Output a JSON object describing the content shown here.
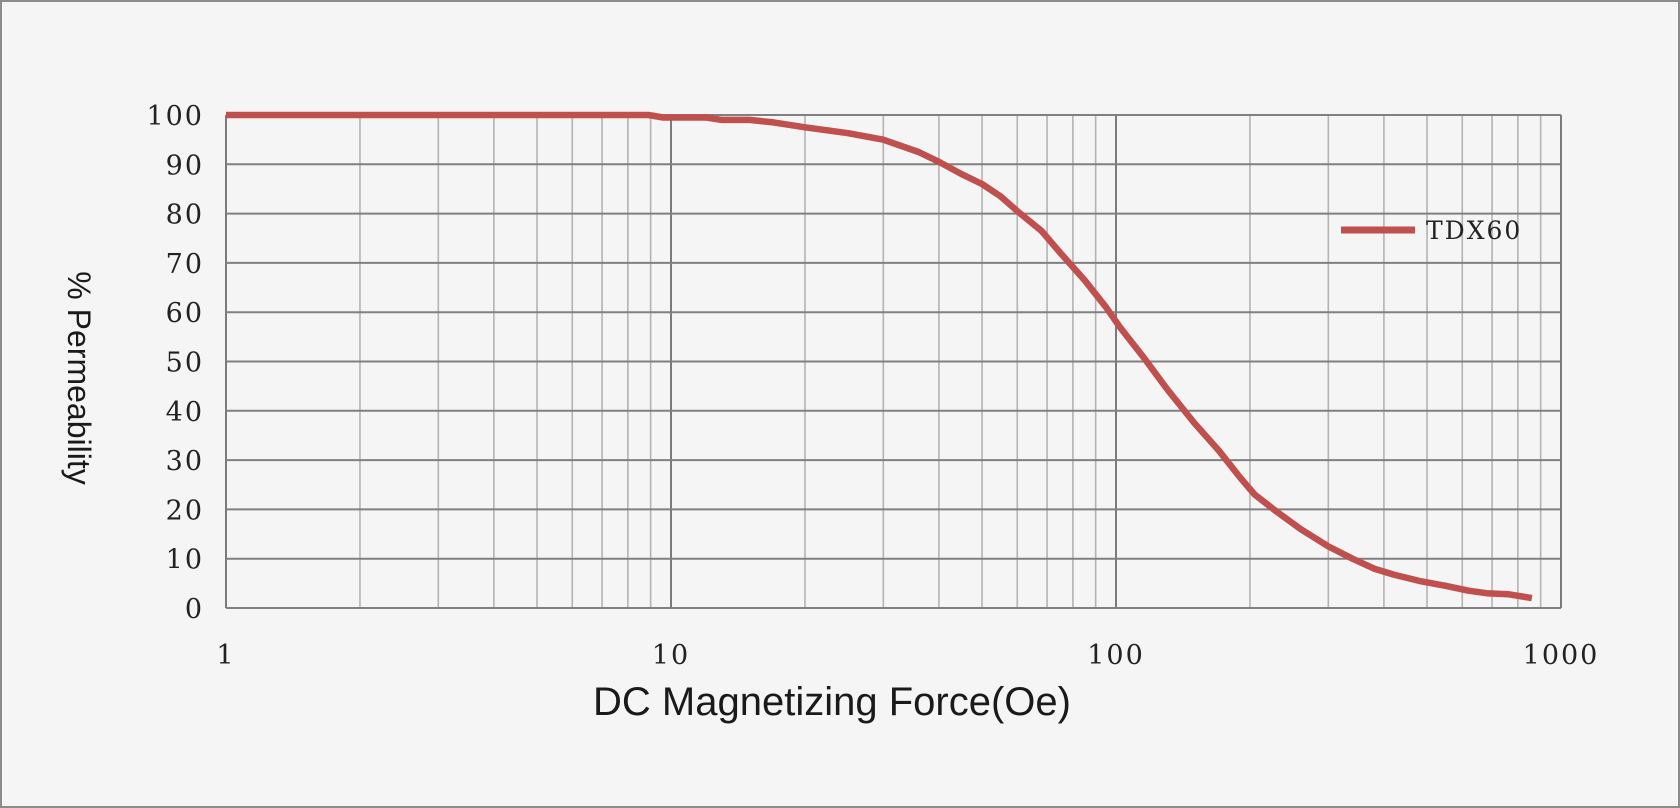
{
  "chart_data": {
    "type": "line",
    "title": "",
    "xlabel": "DC Magnetizing Force(Oe)",
    "ylabel": "% Permeability",
    "xscale": "log",
    "xlim": [
      1,
      1000
    ],
    "ylim": [
      0,
      100
    ],
    "x_tick_labels": [
      "1",
      "10",
      "100",
      "1000"
    ],
    "y_tick_labels": [
      "0",
      "10",
      "20",
      "30",
      "40",
      "50",
      "60",
      "70",
      "80",
      "90",
      "100"
    ],
    "grid": true,
    "legend_position": "top-right",
    "series": [
      {
        "name": "TDX60",
        "color": "#c0504d",
        "x": [
          1,
          2,
          5,
          8.9,
          9.6,
          12,
          13,
          15,
          17,
          20,
          25,
          30,
          36,
          40,
          45,
          50,
          55,
          60,
          68,
          75,
          85,
          95,
          102,
          115,
          130,
          150,
          170,
          190,
          205,
          230,
          260,
          300,
          340,
          380,
          420,
          480,
          550,
          620,
          680,
          760,
          860
        ],
        "values": [
          100,
          100,
          100,
          100,
          99.5,
          99.5,
          99,
          99,
          98.5,
          97.5,
          96.3,
          95,
          92.5,
          90.5,
          88,
          86,
          83.5,
          80.5,
          76.5,
          72,
          66.5,
          61,
          57,
          51,
          44.5,
          37.5,
          32,
          26.5,
          23,
          19.5,
          16,
          12.5,
          10,
          8,
          6.8,
          5.5,
          4.5,
          3.5,
          3,
          2.8,
          2
        ]
      }
    ]
  }
}
